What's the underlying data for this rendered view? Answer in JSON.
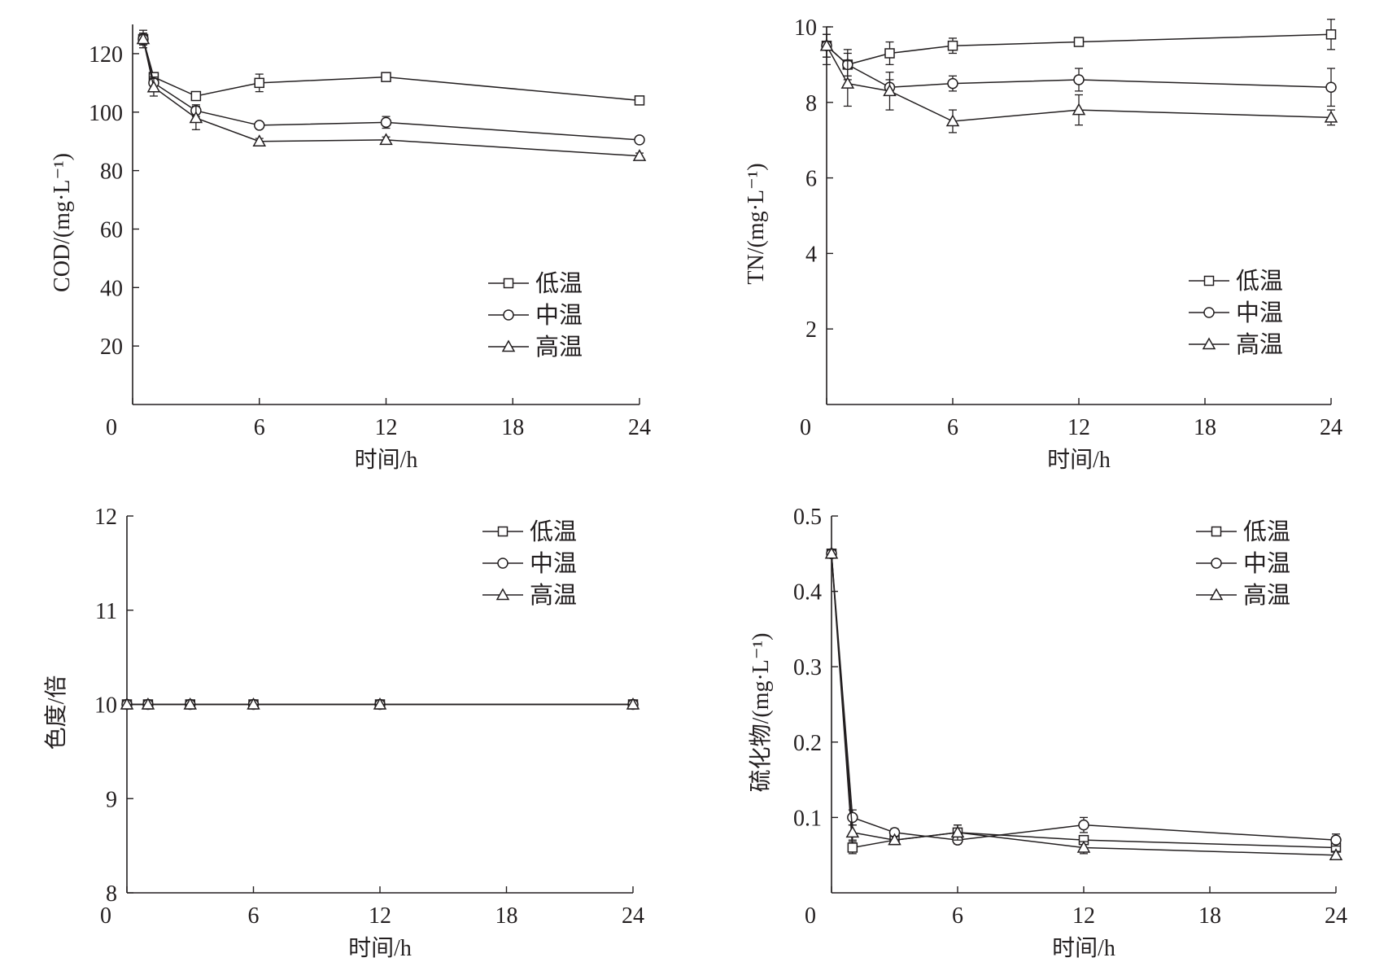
{
  "chart_data": [
    {
      "type": "line",
      "xlabel": "时间/h",
      "ylabel": "COD/(mg·L⁻¹)",
      "xlim": [
        0,
        24
      ],
      "ylim": [
        0,
        130
      ],
      "xticks": [
        0,
        6,
        12,
        18,
        24
      ],
      "yticks": [
        20,
        40,
        60,
        80,
        100,
        120
      ],
      "legend_position": "bottom-right",
      "grid": false,
      "x": [
        0.5,
        1,
        3,
        6,
        12,
        24
      ],
      "series": [
        {
          "name": "低温",
          "marker": "square",
          "values": [
            125,
            112,
            105.5,
            110,
            112,
            104
          ],
          "errors": [
            2,
            1.5,
            1,
            3,
            1,
            1
          ]
        },
        {
          "name": "中温",
          "marker": "circle",
          "values": [
            125,
            110,
            100.5,
            95.5,
            96.5,
            90.5
          ],
          "errors": [
            2,
            2,
            2,
            1,
            2,
            1
          ]
        },
        {
          "name": "高温",
          "marker": "triangle",
          "values": [
            125,
            108.5,
            98,
            90,
            90.5,
            85
          ],
          "errors": [
            3,
            3,
            4,
            1,
            1,
            1
          ]
        }
      ]
    },
    {
      "type": "line",
      "xlabel": "时间/h",
      "ylabel": "TN/(mg·L⁻¹)",
      "xlim": [
        0,
        24
      ],
      "ylim": [
        0,
        10
      ],
      "xticks": [
        0,
        6,
        12,
        18,
        24
      ],
      "yticks": [
        2,
        4,
        6,
        8,
        10
      ],
      "legend_position": "bottom-right",
      "grid": false,
      "x": [
        0,
        1,
        3,
        6,
        12,
        24
      ],
      "series": [
        {
          "name": "低温",
          "marker": "square",
          "values": [
            9.5,
            9.0,
            9.3,
            9.5,
            9.6,
            9.8
          ],
          "errors": [
            0.3,
            0.4,
            0.3,
            0.2,
            0.05,
            0.4
          ]
        },
        {
          "name": "中温",
          "marker": "circle",
          "values": [
            9.5,
            9.0,
            8.4,
            8.5,
            8.6,
            8.4
          ],
          "errors": [
            0.3,
            0.3,
            0.2,
            0.2,
            0.3,
            0.5
          ]
        },
        {
          "name": "高温",
          "marker": "triangle",
          "values": [
            9.5,
            8.5,
            8.3,
            7.5,
            7.8,
            7.6
          ],
          "errors": [
            0.5,
            0.6,
            0.5,
            0.3,
            0.4,
            0.2
          ]
        }
      ]
    },
    {
      "type": "line",
      "xlabel": "时间/h",
      "ylabel": "色度/倍",
      "xlim": [
        0,
        24
      ],
      "ylim": [
        8,
        12
      ],
      "xticks": [
        0,
        6,
        12,
        18,
        24
      ],
      "yticks": [
        8,
        9,
        10,
        11,
        12
      ],
      "legend_position": "top-right",
      "grid": false,
      "x": [
        0,
        1,
        3,
        6,
        12,
        24
      ],
      "series": [
        {
          "name": "低温",
          "marker": "square",
          "values": [
            10,
            10,
            10,
            10,
            10,
            10
          ],
          "errors": [
            0,
            0,
            0,
            0,
            0,
            0
          ]
        },
        {
          "name": "中温",
          "marker": "circle",
          "values": [
            10,
            10,
            10,
            10,
            10,
            10
          ],
          "errors": [
            0,
            0,
            0,
            0,
            0,
            0
          ]
        },
        {
          "name": "高温",
          "marker": "triangle",
          "values": [
            10,
            10,
            10,
            10,
            10,
            10
          ],
          "errors": [
            0,
            0,
            0,
            0,
            0,
            0
          ]
        }
      ]
    },
    {
      "type": "line",
      "xlabel": "时间/h",
      "ylabel": "硫化物/(mg·L⁻¹)",
      "xlim": [
        0,
        24
      ],
      "ylim": [
        0,
        0.5
      ],
      "xticks": [
        0,
        6,
        12,
        18,
        24
      ],
      "yticks": [
        0.1,
        0.2,
        0.3,
        0.4,
        0.5
      ],
      "legend_position": "top-right",
      "grid": false,
      "x": [
        0,
        1,
        3,
        6,
        12,
        24
      ],
      "series": [
        {
          "name": "低温",
          "marker": "square",
          "values": [
            0.45,
            0.06,
            0.07,
            0.08,
            0.07,
            0.06
          ],
          "errors": [
            0.005,
            0.008,
            0.005,
            0.01,
            0.005,
            0.005
          ]
        },
        {
          "name": "中温",
          "marker": "circle",
          "values": [
            0.45,
            0.1,
            0.08,
            0.07,
            0.09,
            0.07
          ],
          "errors": [
            0.005,
            0.01,
            0.005,
            0.005,
            0.01,
            0.008
          ]
        },
        {
          "name": "高温",
          "marker": "triangle",
          "values": [
            0.45,
            0.08,
            0.07,
            0.08,
            0.06,
            0.05
          ],
          "errors": [
            0.005,
            0.01,
            0.005,
            0.01,
            0.008,
            0.005
          ]
        }
      ]
    }
  ]
}
